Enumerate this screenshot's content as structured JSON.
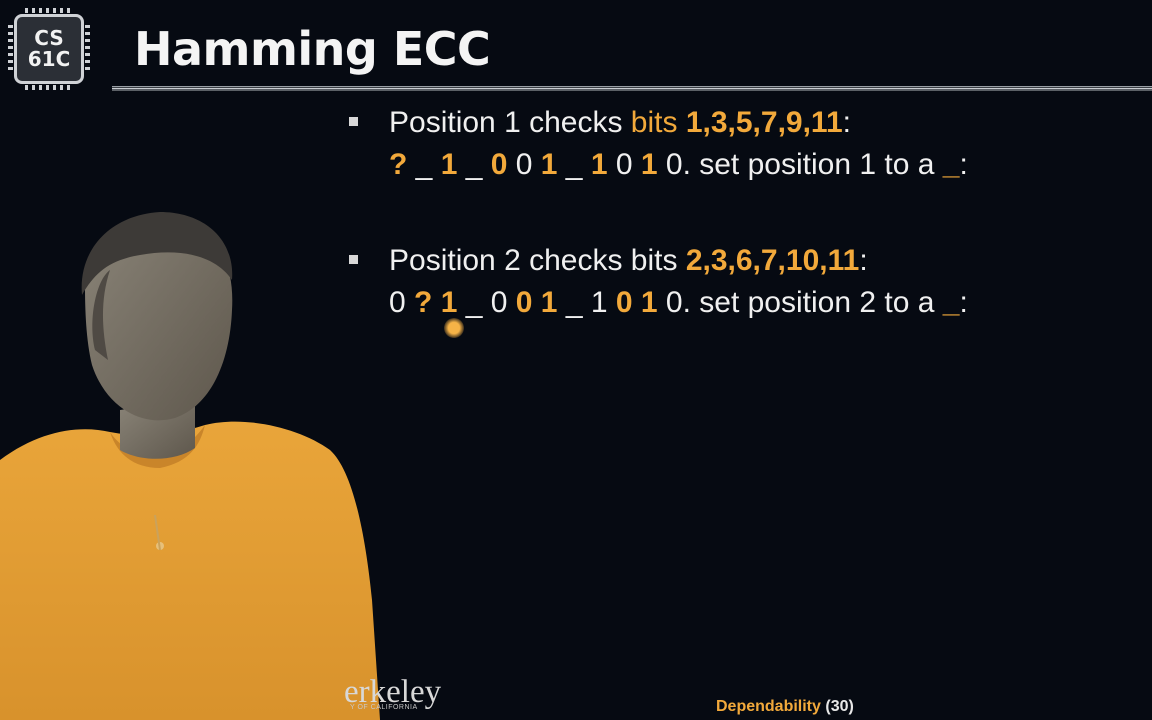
{
  "logo": {
    "line1": "CS",
    "line2": "61C"
  },
  "title": "Hamming ECC",
  "bullet1": {
    "l1_a": "Position 1 checks ",
    "l1_b": "bits",
    "l1_sp": " ",
    "l1_c": "1,3,5,7,9,11",
    "l1_d": ":",
    "l2_q": "?",
    "l2_a": " _ ",
    "l2_b": "1",
    "l2_c": " _ ",
    "l2_d": "0",
    "l2_e": " 0 ",
    "l2_f": "1",
    "l2_g": " _ ",
    "l2_h": "1",
    "l2_i": " 0 ",
    "l2_j": "1",
    "l2_k": " 0. set position 1 to a ",
    "l2_l": "_",
    "l2_m": ":"
  },
  "bullet2": {
    "l1_a": "Position 2 checks bits ",
    "l1_c": "2,3,6,7,10,11",
    "l1_d": ":",
    "l2_a": "0 ",
    "l2_q": "?",
    "l2_sp1": " ",
    "l2_b": "1",
    "l2_c": " _ 0 ",
    "l2_d": "0",
    "l2_e": " ",
    "l2_f": "1",
    "l2_g": " _ 1 ",
    "l2_h": "0",
    "l2_sp2": " ",
    "l2_i": "1",
    "l2_k": " 0. set position 2 to a ",
    "l2_l": "_",
    "l2_m": ":"
  },
  "footer": {
    "berkeley": "erkeley",
    "university": "Y OF CALIFORNIA",
    "topic": "Dependability",
    "page": "(30)"
  },
  "colors": {
    "accent": "#f2a93b",
    "background": "#060a12",
    "text": "#f0f0f0"
  }
}
